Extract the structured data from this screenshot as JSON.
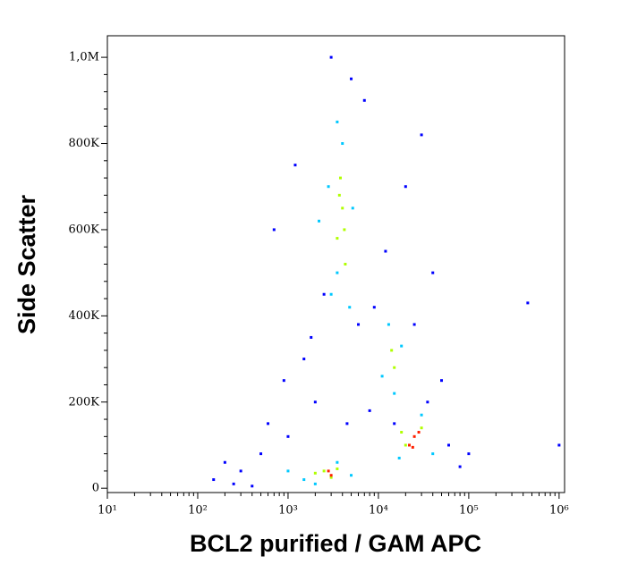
{
  "chart_data": {
    "type": "scatter",
    "x_label": "BCL2 purified / GAM APC",
    "y_label": "Side Scatter",
    "x_scale": "log",
    "xlim": [
      10,
      1150000
    ],
    "ylim": [
      -10000,
      1050000
    ],
    "xticks": [
      {
        "value": 10,
        "label": "10¹"
      },
      {
        "value": 100,
        "label": "10²"
      },
      {
        "value": 1000,
        "label": "10³"
      },
      {
        "value": 10000,
        "label": "10⁴"
      },
      {
        "value": 100000,
        "label": "10⁵"
      },
      {
        "value": 1000000,
        "label": "10⁶"
      }
    ],
    "yticks": [
      0,
      {
        "value": 200000,
        "label": "200K"
      },
      {
        "value": 400000,
        "label": "400K"
      },
      {
        "value": 600000,
        "label": "600K"
      },
      {
        "value": 800000,
        "label": "800K"
      },
      {
        "value": 1000000,
        "label": "1,0M"
      }
    ],
    "series": [
      {
        "color": "#0000ff",
        "x": [
          600,
          900,
          1500,
          2000,
          8000,
          50000,
          40000,
          20000,
          1200,
          300,
          150,
          80000,
          700,
          3000,
          5000,
          9000,
          12000,
          30000,
          60000,
          200,
          500,
          1000,
          2500,
          6000,
          35000,
          100000,
          1800,
          7000,
          450000,
          1000000,
          250,
          400,
          4500,
          15000,
          25000
        ],
        "values": [
          150000,
          250000,
          300000,
          200000,
          180000,
          250000,
          500000,
          700000,
          750000,
          40000,
          20000,
          50000,
          600000,
          1000000,
          950000,
          420000,
          550000,
          820000,
          100000,
          60000,
          80000,
          120000,
          450000,
          380000,
          200000,
          80000,
          350000,
          900000,
          430000,
          100000,
          10000,
          5000,
          150000,
          150000,
          380000
        ]
      },
      {
        "color": "#00c8ff",
        "x": [
          3500,
          4000,
          2800,
          5200,
          3000,
          4800,
          3500,
          2200,
          13000,
          18000,
          11000,
          15000,
          17000,
          40000,
          30000,
          1500,
          5000,
          1000,
          3500,
          2000
        ],
        "values": [
          850000,
          800000,
          700000,
          650000,
          450000,
          420000,
          500000,
          620000,
          380000,
          330000,
          260000,
          220000,
          70000,
          80000,
          170000,
          20000,
          30000,
          40000,
          60000,
          10000
        ]
      },
      {
        "color": "#b0ff00",
        "x": [
          3800,
          4200,
          3500,
          4000,
          4300,
          3700,
          14000,
          15000,
          20000,
          30000,
          18000,
          2500,
          3000,
          2000,
          3500
        ],
        "values": [
          720000,
          600000,
          580000,
          650000,
          520000,
          680000,
          320000,
          280000,
          100000,
          140000,
          130000,
          40000,
          25000,
          35000,
          45000
        ]
      },
      {
        "color": "#ff2000",
        "x": [
          25000,
          22000,
          28000,
          24000,
          3000,
          2800
        ],
        "values": [
          120000,
          100000,
          130000,
          95000,
          30000,
          40000
        ]
      }
    ]
  }
}
